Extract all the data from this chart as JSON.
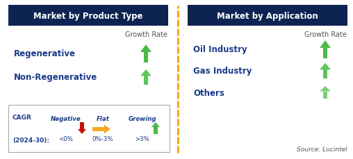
{
  "left_header": "Market by Product Type",
  "right_header": "Market by Application",
  "left_items": [
    "Regenerative",
    "Non-Regenerative"
  ],
  "right_items": [
    "Oil Industry",
    "Gas Industry",
    "Others"
  ],
  "growth_rate_label": "Growth Rate",
  "header_bg": "#0d2352",
  "header_text_color": "#ffffff",
  "item_text_color": "#1a3a8a",
  "growth_text_color": "#555555",
  "arrow_green_1": "#4db847",
  "arrow_green_2": "#5ec45a",
  "arrow_green_3": "#7dd17a",
  "dashed_line_color": "#f5a623",
  "legend_border_color": "#aaaaaa",
  "legend_text_color": "#1a3a8a",
  "legend_negative_color": "#cc1100",
  "legend_flat_color": "#f5a623",
  "legend_growing_color": "#4db847",
  "source_text": "Source: Lucintel",
  "cagr_line1": "CAGR",
  "cagr_line2": "(2024-30):",
  "legend_negative_label": "Negative",
  "legend_negative_val": "<0%",
  "legend_flat_label": "Flat",
  "legend_flat_val": "0%-3%",
  "legend_growing_label": "Growing",
  "legend_growing_val": ">3%",
  "fig_width": 5.08,
  "fig_height": 2.3,
  "dpi": 100
}
